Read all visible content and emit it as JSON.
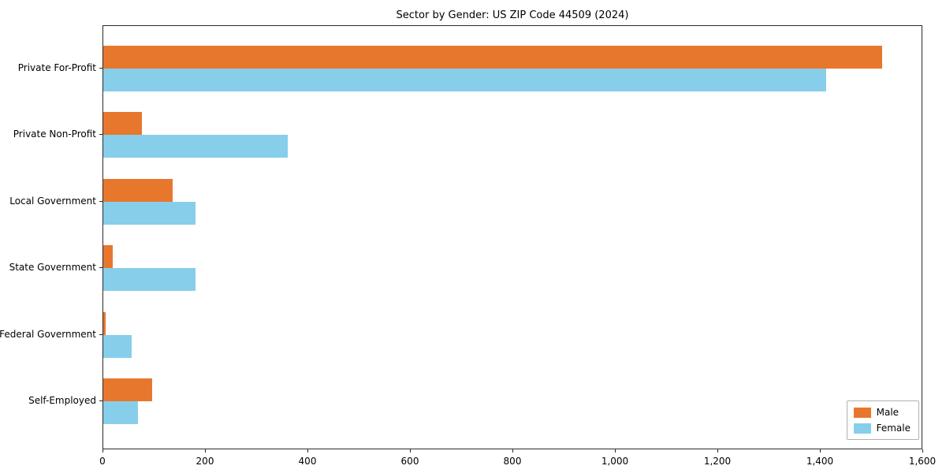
{
  "chart_data": {
    "type": "bar",
    "orientation": "horizontal",
    "title": "Sector by Gender: US ZIP Code 44509 (2024)",
    "categories": [
      "Private For-Profit",
      "Private Non-Profit",
      "Local Government",
      "State Government",
      "Federal Government",
      "Self-Employed"
    ],
    "series": [
      {
        "name": "Male",
        "color": "#e8772e",
        "values": [
          1520,
          75,
          135,
          18,
          4,
          95
        ]
      },
      {
        "name": "Female",
        "color": "#87ceeb",
        "values": [
          1410,
          360,
          180,
          180,
          55,
          68
        ]
      }
    ],
    "xlim": [
      0,
      1600
    ],
    "xticks": [
      0,
      200,
      400,
      600,
      800,
      1000,
      1200,
      1400,
      1600
    ],
    "xtick_labels": [
      "0",
      "200",
      "400",
      "600",
      "800",
      "1,000",
      "1,200",
      "1,400",
      "1,600"
    ],
    "xlabel": "",
    "ylabel": "",
    "grid": false,
    "legend_position": "lower right"
  }
}
